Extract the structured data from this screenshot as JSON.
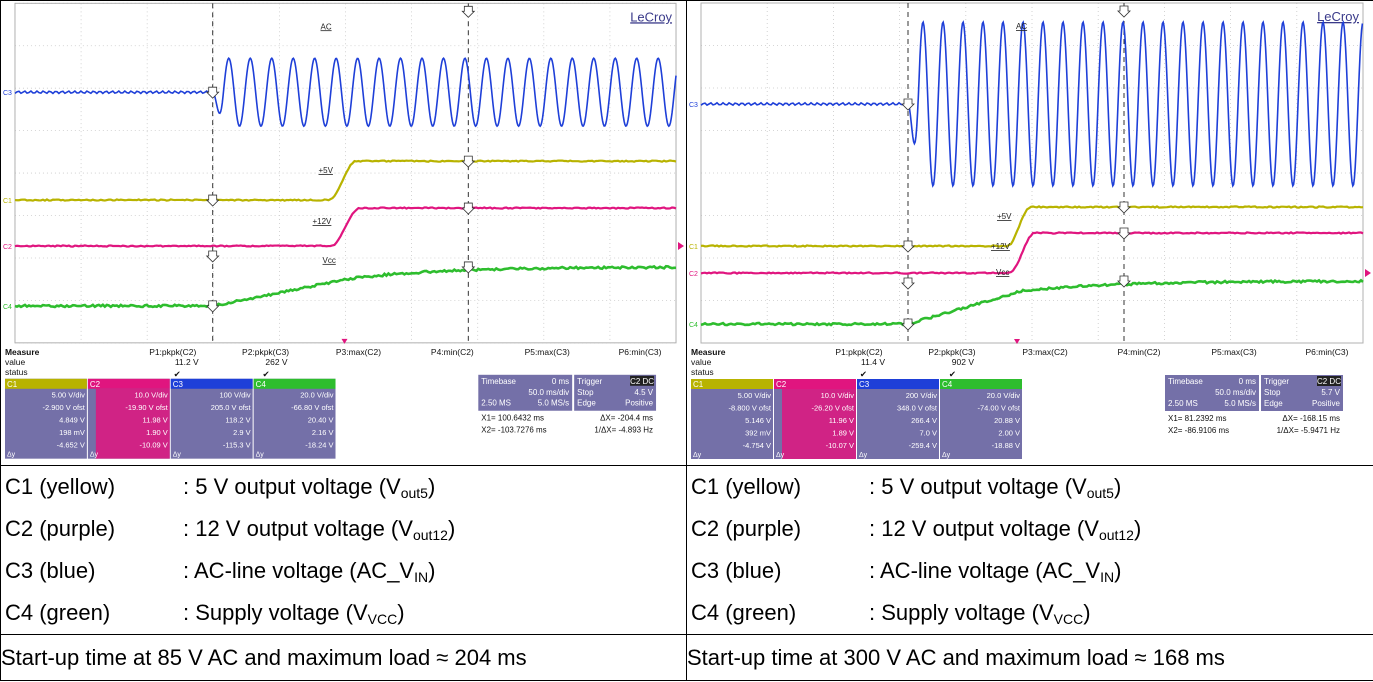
{
  "scopes": [
    {
      "brand": "LeCroy",
      "markers": {
        "ac": "AC",
        "v5": "+5V",
        "v12": "+12V",
        "vcc": "Vcc"
      },
      "channel_axis": [
        "C3",
        "C1",
        "C2",
        "C4"
      ],
      "measure": {
        "title": "Measure",
        "row_value": "value",
        "row_status": "status",
        "headers": [
          "P1:pkpk(C2)",
          "P2:pkpk(C3)",
          "P3:max(C2)",
          "P4:min(C2)",
          "P5:max(C3)",
          "P6:min(C3)"
        ],
        "p1_value": "11.2 V",
        "p2_value": "262 V",
        "status_mark": "✔"
      },
      "channels": [
        {
          "id": "C1",
          "color": "#b8b300",
          "vdiv": "5.00 V/div",
          "ofst": "-2.900 V ofst",
          "down": "4.849 V",
          "up": "198 mV",
          "dy": "-4.652 V"
        },
        {
          "id": "C2",
          "color": "#e0157f",
          "vdiv": "10.0 V/div",
          "ofst": "-19.90 V ofst",
          "down": "11.98 V",
          "up": "1.90 V",
          "dy": "-10.09 V"
        },
        {
          "id": "C3",
          "color": "#1e3fd8",
          "vdiv": "100 V/div",
          "ofst": "205.0 V ofst",
          "down": "118.2 V",
          "up": "2.9 V",
          "dy": "-115.3 V"
        },
        {
          "id": "C4",
          "color": "#2ebd2e",
          "vdiv": "20.0 V/div",
          "ofst": "-66.80 V ofst",
          "down": "20.40 V",
          "up": "2.16 V",
          "dy": "-18.24 V"
        }
      ],
      "timebase": {
        "label": "Timebase",
        "delay": "0 ms",
        "div": "50.0 ms/div",
        "samples": "2.50 MS",
        "rate": "5.0 MS/s"
      },
      "trigger": {
        "label": "Trigger",
        "chan": "C2 DC",
        "mode": "Stop",
        "level": "4.5 V",
        "type": "Edge",
        "slope": "Positive"
      },
      "cursors": {
        "x1": "X1=   100.6432 ms",
        "dx": "ΔX=  -204.4 ms",
        "x2": "X2=  -103.7276 ms",
        "inv": "1/ΔX=  -4.893 Hz"
      }
    },
    {
      "brand": "LeCroy",
      "markers": {
        "ac": "AC",
        "v5": "+5V",
        "v12": "+12V",
        "vcc": "Vcc"
      },
      "channel_axis": [
        "C3",
        "C1",
        "C2",
        "C4"
      ],
      "measure": {
        "title": "Measure",
        "row_value": "value",
        "row_status": "status",
        "headers": [
          "P1:pkpk(C2)",
          "P2:pkpk(C3)",
          "P3:max(C2)",
          "P4:min(C2)",
          "P5:max(C3)",
          "P6:min(C3)"
        ],
        "p1_value": "11.4 V",
        "p2_value": "902 V",
        "status_mark": "✔"
      },
      "channels": [
        {
          "id": "C1",
          "color": "#b8b300",
          "vdiv": "5.00 V/div",
          "ofst": "-8.800 V ofst",
          "down": "5.146 V",
          "up": "392 mV",
          "dy": "-4.754 V"
        },
        {
          "id": "C2",
          "color": "#e0157f",
          "vdiv": "10.0 V/div",
          "ofst": "-26.20 V ofst",
          "down": "11.96 V",
          "up": "1.89 V",
          "dy": "-10.07 V"
        },
        {
          "id": "C3",
          "color": "#1e3fd8",
          "vdiv": "200 V/div",
          "ofst": "348.0 V ofst",
          "down": "266.4 V",
          "up": "7.0 V",
          "dy": "-259.4 V"
        },
        {
          "id": "C4",
          "color": "#2ebd2e",
          "vdiv": "20.0 V/div",
          "ofst": "-74.00 V ofst",
          "down": "20.88 V",
          "up": "2.00 V",
          "dy": "-18.88 V"
        }
      ],
      "timebase": {
        "label": "Timebase",
        "delay": "0 ms",
        "div": "50.0 ms/div",
        "samples": "2.50 MS",
        "rate": "5.0 MS/s"
      },
      "trigger": {
        "label": "Trigger",
        "chan": "C2 DC",
        "mode": "Stop",
        "level": "5.7 V",
        "type": "Edge",
        "slope": "Positive"
      },
      "cursors": {
        "x1": "X1=   81.2392 ms",
        "dx": "ΔX=  -168.15 ms",
        "x2": "X2=  -86.9106 ms",
        "inv": "1/ΔX=  -5.9471 Hz"
      }
    }
  ],
  "legend": [
    {
      "channel": "C1 (yellow)",
      "desc": ": 5 V output voltage (V",
      "sub": "out5",
      "tail": ")"
    },
    {
      "channel": "C2 (purple)",
      "desc": ": 12 V output voltage (V",
      "sub": "out12",
      "tail": ")"
    },
    {
      "channel": "C3 (blue)",
      "desc": ": AC-line voltage (AC_V",
      "sub": "IN",
      "tail": ")"
    },
    {
      "channel": "C4 (green)",
      "desc": ": Supply voltage (V",
      "sub": "VCC",
      "tail": ")"
    }
  ],
  "summary": {
    "left": "Start-up time at 85 V AC and maximum load ≈ 204 ms",
    "right": "Start-up time at 300 V AC and maximum load ≈ 168 ms"
  },
  "colors": {
    "c1": "#b8b300",
    "c2": "#e0157f",
    "c3": "#1e3fd8",
    "c4": "#2ebd2e",
    "panel": "#7470a8"
  }
}
